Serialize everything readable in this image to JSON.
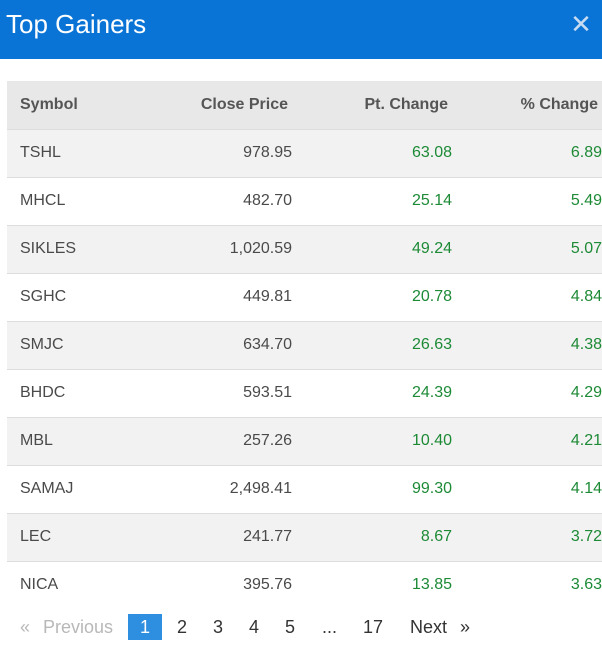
{
  "header": {
    "title": "Top Gainers",
    "close_glyph": "✕"
  },
  "table": {
    "columns": [
      "Symbol",
      "Close Price",
      "Pt. Change",
      "% Change"
    ],
    "rows": [
      [
        "TSHL",
        "978.95",
        "63.08",
        "6.89"
      ],
      [
        "MHCL",
        "482.70",
        "25.14",
        "5.49"
      ],
      [
        "SIKLES",
        "1,020.59",
        "49.24",
        "5.07"
      ],
      [
        "SGHC",
        "449.81",
        "20.78",
        "4.84"
      ],
      [
        "SMJC",
        "634.70",
        "26.63",
        "4.38"
      ],
      [
        "BHDC",
        "593.51",
        "24.39",
        "4.29"
      ],
      [
        "MBL",
        "257.26",
        "10.40",
        "4.21"
      ],
      [
        "SAMAJ",
        "2,498.41",
        "99.30",
        "4.14"
      ],
      [
        "LEC",
        "241.77",
        "8.67",
        "3.72"
      ],
      [
        "NICA",
        "395.76",
        "13.85",
        "3.63"
      ]
    ]
  },
  "pagination": {
    "prev_arrow": "«",
    "prev_label": "Previous",
    "pages": [
      "1",
      "2",
      "3",
      "4",
      "5"
    ],
    "ellipsis": "...",
    "last_page": "17",
    "next_label": "Next",
    "next_arrow": "»",
    "current": "1"
  },
  "colors": {
    "header_bg": "#0a74d6",
    "positive": "#1d8a36",
    "active_page": "#2e8ee0"
  }
}
